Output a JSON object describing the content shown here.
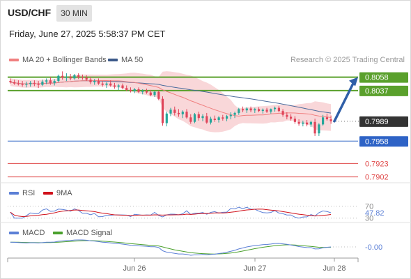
{
  "header": {
    "symbol": "USD/CHF",
    "timeframe": "30 MIN",
    "datetime": "Friday, June 27, 2025 5:58:37 PM CET",
    "credit": "Research © 2025 Trading Central"
  },
  "colors": {
    "up": "#26a69a",
    "down": "#e0455a",
    "band_fill": "#f7c9cc",
    "ma20": "#f08080",
    "ma50": "#4a6b9c",
    "resistance": "#5aa02c",
    "support": "#2e63c6",
    "target": "#e04a4a",
    "arrow": "#2f5fa8",
    "rsi": "#5b7fd6",
    "rsi_ma": "#d0101a",
    "macd": "#5b7fd6",
    "macd_signal": "#4aa02c",
    "current_tag": "#333333"
  },
  "chart_data": [
    {
      "type": "candlestick",
      "title": "USD/CHF",
      "legend": [
        "MA 20 + Bollinger Bands",
        "MA 50"
      ],
      "x_ticks": [
        "Jun 26",
        "Jun 27",
        "Jun 28"
      ],
      "ylim": [
        0.7895,
        0.8075
      ],
      "candles_ohlc": [
        [
          0.8052,
          0.8056,
          0.8048,
          0.805
        ],
        [
          0.805,
          0.8054,
          0.8046,
          0.8048
        ],
        [
          0.8048,
          0.8053,
          0.8045,
          0.8047
        ],
        [
          0.8047,
          0.8052,
          0.8043,
          0.8046
        ],
        [
          0.8046,
          0.8051,
          0.8042,
          0.8047
        ],
        [
          0.8047,
          0.8052,
          0.8043,
          0.8049
        ],
        [
          0.8049,
          0.8053,
          0.8044,
          0.8048
        ],
        [
          0.8048,
          0.8052,
          0.8041,
          0.8046
        ],
        [
          0.8046,
          0.8054,
          0.8044,
          0.8051
        ],
        [
          0.8051,
          0.8056,
          0.8047,
          0.8053
        ],
        [
          0.8053,
          0.8058,
          0.8046,
          0.8049
        ],
        [
          0.8049,
          0.8055,
          0.8045,
          0.8052
        ],
        [
          0.8052,
          0.8062,
          0.805,
          0.806
        ],
        [
          0.806,
          0.8067,
          0.8054,
          0.8057
        ],
        [
          0.8057,
          0.8064,
          0.8052,
          0.8058
        ],
        [
          0.8058,
          0.8063,
          0.8053,
          0.8056
        ],
        [
          0.8056,
          0.8063,
          0.8054,
          0.8061
        ],
        [
          0.8061,
          0.8064,
          0.8055,
          0.8058
        ],
        [
          0.8058,
          0.8062,
          0.8054,
          0.8057
        ],
        [
          0.8057,
          0.8061,
          0.8052,
          0.8054
        ],
        [
          0.8054,
          0.8058,
          0.8047,
          0.805
        ],
        [
          0.805,
          0.8055,
          0.8046,
          0.8052
        ],
        [
          0.8052,
          0.8056,
          0.8046,
          0.8048
        ],
        [
          0.8048,
          0.8052,
          0.8043,
          0.8046
        ],
        [
          0.8046,
          0.805,
          0.8041,
          0.8048
        ],
        [
          0.8048,
          0.8053,
          0.8043,
          0.8045
        ],
        [
          0.8045,
          0.8049,
          0.804,
          0.8043
        ],
        [
          0.8043,
          0.8047,
          0.8038,
          0.8045
        ],
        [
          0.8045,
          0.8048,
          0.8039,
          0.8041
        ],
        [
          0.8041,
          0.8045,
          0.8036,
          0.8038
        ],
        [
          0.8038,
          0.8042,
          0.8034,
          0.8036
        ],
        [
          0.8036,
          0.8041,
          0.8033,
          0.8039
        ],
        [
          0.8039,
          0.8042,
          0.8033,
          0.8035
        ],
        [
          0.8035,
          0.8039,
          0.8031,
          0.8036
        ],
        [
          0.8036,
          0.804,
          0.8032,
          0.8034
        ],
        [
          0.8034,
          0.8038,
          0.8028,
          0.803
        ],
        [
          0.803,
          0.8036,
          0.8027,
          0.8035
        ],
        [
          0.8035,
          0.8037,
          0.8022,
          0.8024
        ],
        [
          0.8024,
          0.8028,
          0.7982,
          0.7986
        ],
        [
          0.7986,
          0.8004,
          0.7981,
          0.8001
        ],
        [
          0.8001,
          0.801,
          0.7997,
          0.8007
        ],
        [
          0.8007,
          0.8012,
          0.7998,
          0.8002
        ],
        [
          0.8002,
          0.8008,
          0.7996,
          0.8
        ],
        [
          0.8,
          0.8006,
          0.7994,
          0.8004
        ],
        [
          0.8004,
          0.8008,
          0.7993,
          0.7995
        ],
        [
          0.7995,
          0.8,
          0.7985,
          0.7988
        ],
        [
          0.7988,
          0.8002,
          0.7986,
          0.8
        ],
        [
          0.8,
          0.8004,
          0.799,
          0.7994
        ],
        [
          0.7994,
          0.8,
          0.7989,
          0.7997
        ],
        [
          0.7997,
          0.8002,
          0.7985,
          0.7987
        ],
        [
          0.7987,
          0.7996,
          0.7984,
          0.7993
        ],
        [
          0.7993,
          0.7998,
          0.7988,
          0.7991
        ],
        [
          0.7991,
          0.7997,
          0.7987,
          0.7995
        ],
        [
          0.7995,
          0.7999,
          0.799,
          0.7993
        ],
        [
          0.7993,
          0.7999,
          0.7989,
          0.7997
        ],
        [
          0.7997,
          0.8003,
          0.7992,
          0.7999
        ],
        [
          0.7999,
          0.8004,
          0.7994,
          0.8002
        ],
        [
          0.8002,
          0.801,
          0.7999,
          0.8008
        ],
        [
          0.8008,
          0.8012,
          0.8003,
          0.8006
        ],
        [
          0.8006,
          0.8011,
          0.8002,
          0.8009
        ],
        [
          0.8009,
          0.8012,
          0.8003,
          0.8006
        ],
        [
          0.8006,
          0.801,
          0.8002,
          0.8008
        ],
        [
          0.8008,
          0.8011,
          0.8003,
          0.8005
        ],
        [
          0.8005,
          0.8009,
          0.8001,
          0.8007
        ],
        [
          0.8007,
          0.801,
          0.8002,
          0.8004
        ],
        [
          0.8004,
          0.8009,
          0.8001,
          0.8008
        ],
        [
          0.8008,
          0.8012,
          0.8004,
          0.801
        ],
        [
          0.801,
          0.8013,
          0.8003,
          0.8005
        ],
        [
          0.8005,
          0.8008,
          0.7996,
          0.7999
        ],
        [
          0.7999,
          0.8003,
          0.7992,
          0.7996
        ],
        [
          0.7996,
          0.8,
          0.799,
          0.7993
        ],
        [
          0.7993,
          0.7997,
          0.7985,
          0.7988
        ],
        [
          0.7988,
          0.7992,
          0.7982,
          0.7985
        ],
        [
          0.7985,
          0.799,
          0.7981,
          0.7987
        ],
        [
          0.7987,
          0.7991,
          0.7981,
          0.7984
        ],
        [
          0.7984,
          0.799,
          0.798,
          0.7988
        ],
        [
          0.7988,
          0.7993,
          0.7966,
          0.797
        ],
        [
          0.797,
          0.7986,
          0.7966,
          0.7984
        ],
        [
          0.7984,
          0.7999,
          0.7982,
          0.7995
        ],
        [
          0.7995,
          0.8001,
          0.799,
          0.7992
        ],
        [
          0.7992,
          0.7998,
          0.7985,
          0.7989
        ]
      ],
      "levels": [
        {
          "label": "0.8058",
          "value": 0.8058,
          "kind": "resistance"
        },
        {
          "label": "0.8037",
          "value": 0.8037,
          "kind": "resistance"
        },
        {
          "label": "0.7989",
          "value": 0.7989,
          "kind": "current"
        },
        {
          "label": "0.7958",
          "value": 0.7958,
          "kind": "support"
        },
        {
          "label": "0.7923",
          "value": 0.7923,
          "kind": "target"
        },
        {
          "label": "0.7902",
          "value": 0.7902,
          "kind": "target"
        }
      ],
      "forecast_arrow": {
        "from": 0.7989,
        "to": 0.8058,
        "direction": "up"
      }
    },
    {
      "type": "line",
      "title": "RSI",
      "legend": [
        "RSI",
        "9MA"
      ],
      "levels": [
        {
          "label": "70",
          "value": 70
        },
        {
          "label": "30",
          "value": 30
        }
      ],
      "current": {
        "label": "47.82",
        "value": 47.82
      }
    },
    {
      "type": "line",
      "title": "MACD",
      "legend": [
        "MACD",
        "MACD Signal"
      ],
      "current": {
        "label": "-0.00",
        "value": -0.0
      }
    }
  ]
}
